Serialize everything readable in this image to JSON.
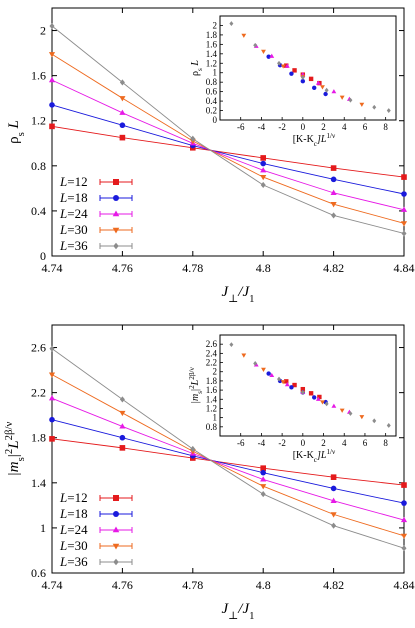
{
  "chart_data": [
    {
      "type": "line",
      "panel": "top",
      "xlabel": "J⊥/J1",
      "xlabel_main": "J",
      "xlabel_sub1": "⊥",
      "xlabel_mid": "/J",
      "xlabel_sub2": "1",
      "ylabel": "ρs L",
      "ylabel_main": "ρ",
      "ylabel_sub": "s",
      "ylabel_tail": "L",
      "xlim": [
        4.74,
        4.84
      ],
      "ylim": [
        0,
        2.2
      ],
      "xticks": [
        "4.74",
        "4.76",
        "4.78",
        "4.8",
        "4.82",
        "4.84"
      ],
      "yticks": [
        "0",
        "0.4",
        "0.8",
        "1.2",
        "1.6",
        "2"
      ],
      "legend_placement": "bottom-left",
      "series": [
        {
          "name": "L=12",
          "size": "12",
          "color": "#e41a1c",
          "marker": "square",
          "x": [
            4.74,
            4.76,
            4.78,
            4.8,
            4.82,
            4.84
          ],
          "values": [
            1.15,
            1.05,
            0.96,
            0.87,
            0.78,
            0.7
          ]
        },
        {
          "name": "L=18",
          "size": "18",
          "color": "#1a1adc",
          "marker": "circle",
          "x": [
            4.74,
            4.76,
            4.78,
            4.8,
            4.82,
            4.84
          ],
          "values": [
            1.34,
            1.16,
            0.98,
            0.82,
            0.68,
            0.55
          ]
        },
        {
          "name": "L=24",
          "size": "24",
          "color": "#e619e6",
          "marker": "triangle-up",
          "x": [
            4.74,
            4.76,
            4.78,
            4.8,
            4.82,
            4.84
          ],
          "values": [
            1.56,
            1.27,
            1.0,
            0.76,
            0.56,
            0.41
          ]
        },
        {
          "name": "L=30",
          "size": "30",
          "color": "#ee6a1f",
          "marker": "triangle-down",
          "x": [
            4.74,
            4.76,
            4.78,
            4.8,
            4.82,
            4.84
          ],
          "values": [
            1.79,
            1.4,
            1.02,
            0.7,
            0.46,
            0.29
          ]
        },
        {
          "name": "L=36",
          "size": "36",
          "color": "#8c8c8c",
          "marker": "diamond",
          "x": [
            4.74,
            4.76,
            4.78,
            4.8,
            4.82,
            4.84
          ],
          "values": [
            2.04,
            1.54,
            1.04,
            0.63,
            0.36,
            0.2
          ]
        }
      ],
      "inset": {
        "type": "scatter",
        "xlabel": "[K-Kc]L1/ν",
        "xlabel_main": "[K-K",
        "xlabel_sub": "c",
        "xlabel_mid": "]L",
        "xlabel_sup": "1/ν",
        "ylabel": "ρs L",
        "ylabel_main": "ρ",
        "ylabel_sub": "s",
        "ylabel_tail": "L",
        "xlim": [
          -8,
          9
        ],
        "ylim": [
          0,
          2.2
        ],
        "xticks": [
          "-6",
          "-4",
          "-2",
          "0",
          "2",
          "4",
          "6",
          "8"
        ],
        "yticks": [
          "0",
          "0.2",
          "0.4",
          "0.6",
          "0.8",
          "1",
          "1.2",
          "1.4",
          "1.6",
          "1.8",
          "2"
        ],
        "series": [
          {
            "name": "L=12",
            "x": [
              -1.6,
              -0.8,
              0.0,
              0.8,
              1.6
            ],
            "values": [
              1.15,
              1.05,
              0.96,
              0.87,
              0.78
            ]
          },
          {
            "name": "L=18",
            "x": [
              -3.3,
              -2.2,
              -1.1,
              0.0,
              1.1,
              2.2
            ],
            "values": [
              1.34,
              1.16,
              0.98,
              0.82,
              0.68,
              0.55
            ]
          },
          {
            "name": "L=24",
            "x": [
              -4.5,
              -3.0,
              -1.5,
              0.0,
              1.5,
              3.0,
              4.5
            ],
            "values": [
              1.56,
              1.35,
              1.14,
              0.96,
              0.78,
              0.6,
              0.44
            ]
          },
          {
            "name": "L=30",
            "x": [
              -5.7,
              -3.8,
              -1.9,
              0.0,
              1.9,
              3.8,
              5.7
            ],
            "values": [
              1.79,
              1.45,
              1.14,
              0.92,
              0.7,
              0.48,
              0.33
            ]
          },
          {
            "name": "L=36",
            "x": [
              -6.9,
              -4.6,
              -2.3,
              0.0,
              2.3,
              4.6,
              6.9,
              8.3
            ],
            "values": [
              2.04,
              1.58,
              1.2,
              0.9,
              0.63,
              0.42,
              0.27,
              0.2
            ]
          }
        ]
      }
    },
    {
      "type": "line",
      "panel": "bottom",
      "xlabel": "J⊥/J1",
      "xlabel_main": "J",
      "xlabel_sub1": "⊥",
      "xlabel_mid": "/J",
      "xlabel_sub2": "1",
      "ylabel": "|ms|2 L2β/ν",
      "ylabel_main": "|m",
      "ylabel_sub": "s",
      "ylabel_mid": "|",
      "ylabel_sup1": "2",
      "ylabel_tail": "L",
      "ylabel_sup2": "2β/ν",
      "xlim": [
        4.74,
        4.84
      ],
      "ylim": [
        0.6,
        2.8
      ],
      "xticks": [
        "4.74",
        "4.76",
        "4.78",
        "4.8",
        "4.82",
        "4.84"
      ],
      "yticks": [
        "0.6",
        "1",
        "1.4",
        "1.8",
        "2.2",
        "2.6"
      ],
      "legend_placement": "bottom-left",
      "series": [
        {
          "name": "L=12",
          "size": "12",
          "color": "#e41a1c",
          "marker": "square",
          "x": [
            4.74,
            4.76,
            4.78,
            4.8,
            4.82,
            4.84
          ],
          "values": [
            1.79,
            1.71,
            1.62,
            1.53,
            1.45,
            1.38
          ]
        },
        {
          "name": "L=18",
          "size": "18",
          "color": "#1a1adc",
          "marker": "circle",
          "x": [
            4.74,
            4.76,
            4.78,
            4.8,
            4.82,
            4.84
          ],
          "values": [
            1.96,
            1.8,
            1.64,
            1.49,
            1.35,
            1.22
          ]
        },
        {
          "name": "L=24",
          "size": "24",
          "color": "#e619e6",
          "marker": "triangle-up",
          "x": [
            4.74,
            4.76,
            4.78,
            4.8,
            4.82,
            4.84
          ],
          "values": [
            2.15,
            1.9,
            1.66,
            1.43,
            1.24,
            1.07
          ]
        },
        {
          "name": "L=30",
          "size": "30",
          "color": "#ee6a1f",
          "marker": "triangle-down",
          "x": [
            4.74,
            4.76,
            4.78,
            4.8,
            4.82,
            4.84
          ],
          "values": [
            2.36,
            2.02,
            1.68,
            1.37,
            1.12,
            0.93
          ]
        },
        {
          "name": "L=36",
          "size": "36",
          "color": "#8c8c8c",
          "marker": "diamond",
          "x": [
            4.74,
            4.76,
            4.78,
            4.8,
            4.82,
            4.84
          ],
          "values": [
            2.59,
            2.14,
            1.7,
            1.3,
            1.02,
            0.82
          ]
        }
      ],
      "inset": {
        "type": "scatter",
        "xlabel": "[K-Kc]L1/ν",
        "xlabel_main": "[K-K",
        "xlabel_sub": "c",
        "xlabel_mid": "]L",
        "xlabel_sup": "1/ν",
        "ylabel": "|ms|2 L2β/ν",
        "ylabel_main": "|m",
        "ylabel_sub": "s",
        "ylabel_mid": "|",
        "ylabel_sup1": "2",
        "ylabel_tail": "L",
        "ylabel_sup2": "2β/ν",
        "xlim": [
          -8,
          9
        ],
        "ylim": [
          0.6,
          2.8
        ],
        "xticks": [
          "-6",
          "-4",
          "-2",
          "0",
          "2",
          "4",
          "6",
          "8"
        ],
        "yticks": [
          "0.8",
          "1",
          "1.2",
          "1.4",
          "1.6",
          "1.8",
          "2",
          "2.2",
          "2.4",
          "2.6"
        ],
        "series": [
          {
            "name": "L=12",
            "x": [
              -1.6,
              -0.8,
              0.0,
              0.8,
              1.6
            ],
            "values": [
              1.79,
              1.71,
              1.62,
              1.53,
              1.45
            ]
          },
          {
            "name": "L=18",
            "x": [
              -3.3,
              -2.2,
              -1.1,
              0.0,
              1.1,
              2.2
            ],
            "values": [
              1.96,
              1.8,
              1.66,
              1.55,
              1.44,
              1.34
            ]
          },
          {
            "name": "L=24",
            "x": [
              -4.5,
              -3.0,
              -1.5,
              0.0,
              1.5,
              3.0,
              4.5
            ],
            "values": [
              2.15,
              1.92,
              1.72,
              1.55,
              1.4,
              1.25,
              1.12
            ]
          },
          {
            "name": "L=30",
            "x": [
              -5.7,
              -3.8,
              -1.9,
              0.0,
              1.9,
              3.8,
              5.7
            ],
            "values": [
              2.36,
              2.05,
              1.78,
              1.55,
              1.34,
              1.16,
              1.02
            ]
          },
          {
            "name": "L=36",
            "x": [
              -6.9,
              -4.6,
              -2.3,
              0.0,
              2.3,
              4.6,
              6.9,
              8.3
            ],
            "values": [
              2.59,
              2.18,
              1.84,
              1.55,
              1.3,
              1.09,
              0.93,
              0.83
            ]
          }
        ]
      }
    }
  ]
}
